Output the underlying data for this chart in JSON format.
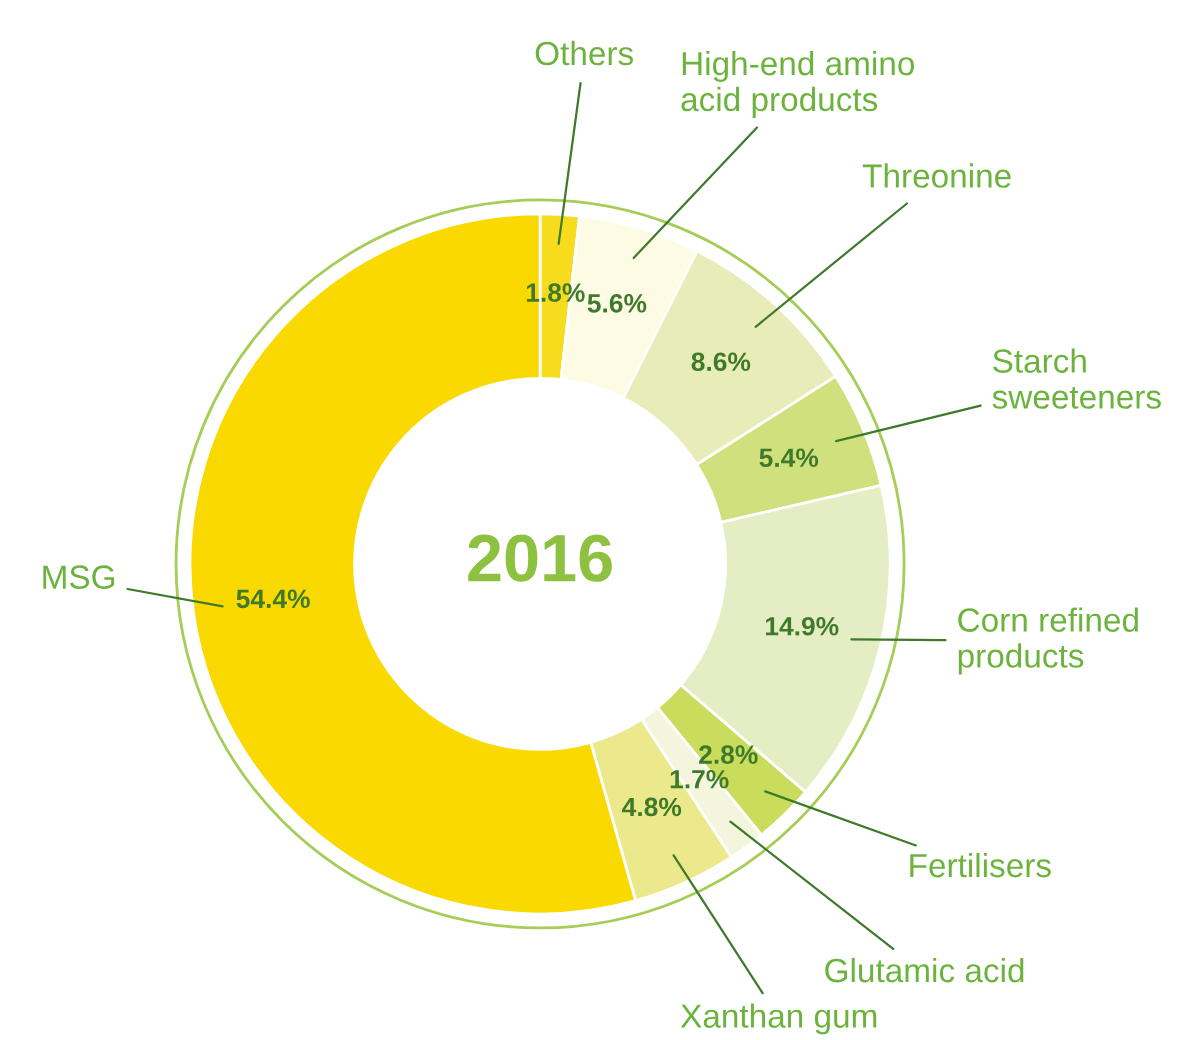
{
  "chart_data": {
    "type": "donut",
    "title": "2016",
    "categories": [
      "Others",
      "High-end amino\nacid products",
      "Threonine",
      "Starch\nsweeteners",
      "Corn refined\nproducts",
      "Fertilisers",
      "Glutamic acid",
      "Xanthan gum",
      "MSG"
    ],
    "values": [
      1.8,
      5.6,
      8.6,
      5.4,
      14.9,
      2.8,
      1.7,
      4.8,
      54.4
    ],
    "colors": [
      "#f7dc1e",
      "#fdfbe4",
      "#e8ecb8",
      "#cfe07c",
      "#e4edc4",
      "#c9dc5c",
      "#f3f5dc",
      "#ece88c",
      "#fad900"
    ],
    "value_labels": [
      "1.8%",
      "5.6%",
      "8.6%",
      "5.4%",
      "14.9%",
      "2.8%",
      "1.7%",
      "4.8%",
      "54.4%"
    ]
  }
}
